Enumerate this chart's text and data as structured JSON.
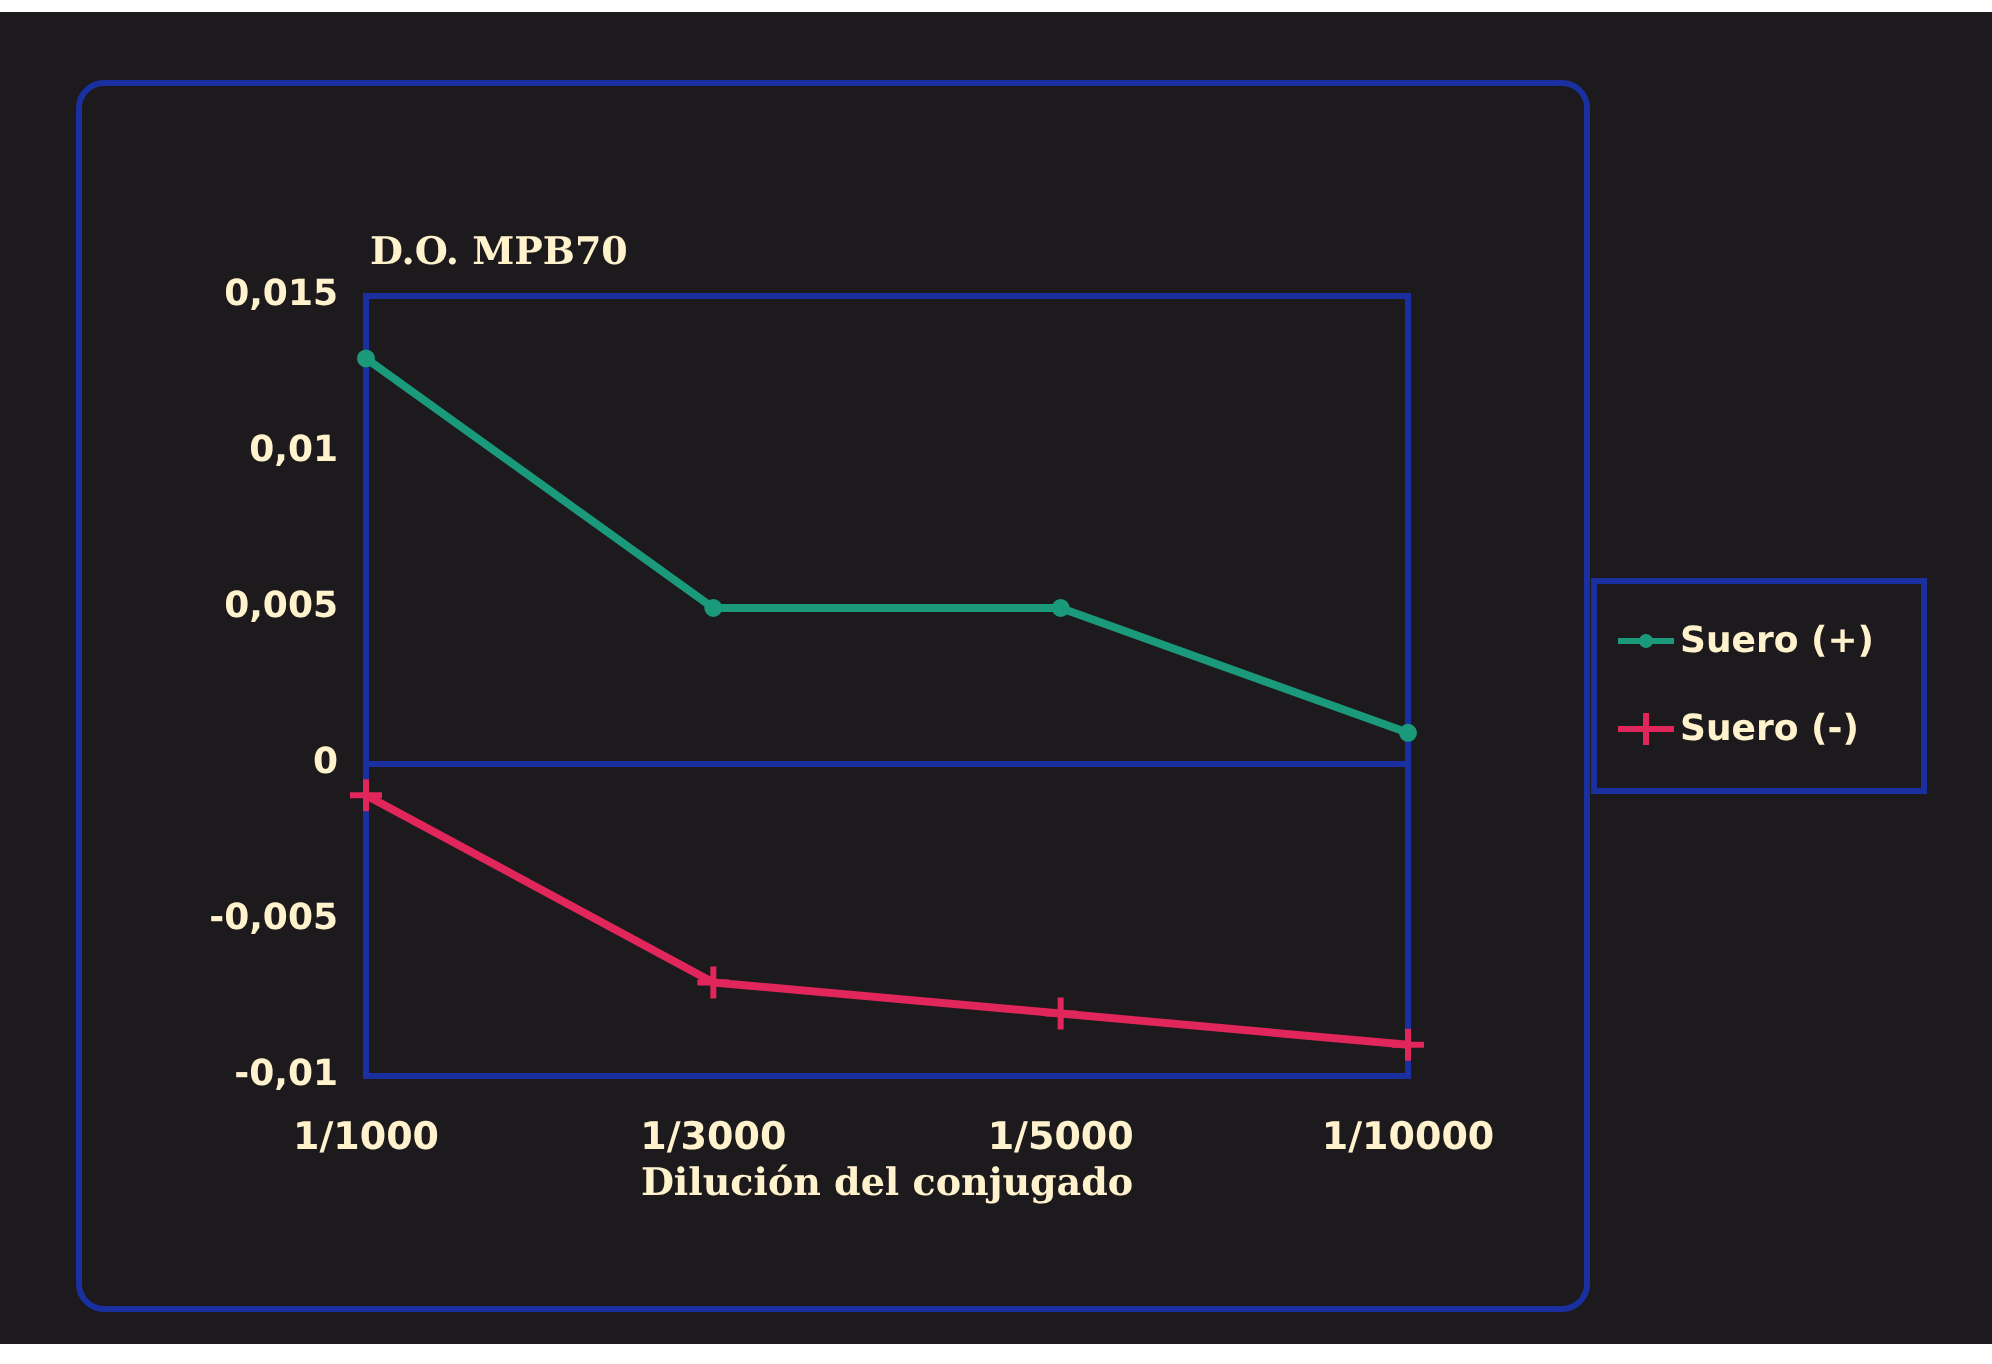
{
  "chart_data": {
    "type": "line",
    "xlabel": "Dilución del conjugado",
    "ylabel": "D.O. MPB70",
    "categories": [
      "1/1000",
      "1/3000",
      "1/5000",
      "1/10000"
    ],
    "series": [
      {
        "name": "Suero (+)",
        "color": "#1a9a7a",
        "values": [
          0.013,
          0.005,
          0.005,
          0.001
        ]
      },
      {
        "name": "Suero (-)",
        "color": "#e0265a",
        "marker": "cross",
        "values": [
          -0.001,
          -0.007,
          -0.008,
          -0.009
        ]
      }
    ],
    "ylim": [
      -0.01,
      0.015
    ],
    "yticks": [
      {
        "value": -0.01,
        "label": "-0,01"
      },
      {
        "value": -0.005,
        "label": "-0,005"
      },
      {
        "value": 0,
        "label": "0"
      },
      {
        "value": 0.005,
        "label": "0,005"
      },
      {
        "value": 0.01,
        "label": "0,01"
      },
      {
        "value": 0.015,
        "label": "0,015"
      }
    ],
    "ref_lines": [
      {
        "axis": "y",
        "value": 0,
        "color": "#1a2fa0"
      }
    ],
    "legend": "right",
    "marker": "circle"
  }
}
